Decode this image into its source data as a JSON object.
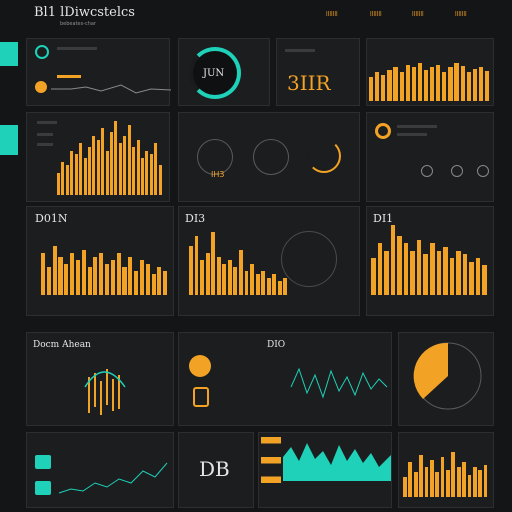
{
  "header": {
    "title": "Bl1 lDiwcstelcs",
    "subtitle": "bebeates-char"
  },
  "colors": {
    "accent_orange": "#f2a224",
    "accent_teal": "#1ed1b8",
    "panel": "#1c1d1f",
    "background": "#141516"
  },
  "top_tabs": [
    {
      "label": "lllllll"
    },
    {
      "label": "lllllll"
    },
    {
      "label": "lllllll"
    },
    {
      "label": "lllllll"
    }
  ],
  "panels": {
    "gauge": {
      "label": "JUN",
      "icon": "radial-gauge-icon"
    },
    "kpi_top": {
      "value": "3IIR"
    },
    "mini_dials": {
      "value": "IH3"
    },
    "row2_left": {
      "label": "D01N"
    },
    "row2_mid": {
      "label": "DI3"
    },
    "row2_right": {
      "label": "DI1"
    },
    "row3_left": {
      "label": "Docm Ahean"
    },
    "row3_mid": {
      "label": "DIO"
    },
    "row4_mid": {
      "value": "DB"
    }
  },
  "chart_data": [
    {
      "type": "bar",
      "values": [
        0.3,
        0.45,
        0.4,
        0.6,
        0.55,
        0.7,
        0.5,
        0.65,
        0.8,
        0.75,
        0.9,
        0.6,
        0.85,
        1.0,
        0.7,
        0.8,
        0.95,
        0.65,
        0.75,
        0.5,
        0.6,
        0.55,
        0.7,
        0.4
      ]
    },
    {
      "type": "bar",
      "values": [
        0.5,
        0.6,
        0.55,
        0.65,
        0.7,
        0.6,
        0.75,
        0.7,
        0.8,
        0.65,
        0.7,
        0.75,
        0.6,
        0.7,
        0.8,
        0.72,
        0.6,
        0.66,
        0.7,
        0.62
      ]
    },
    {
      "type": "bar",
      "values": [
        0.6,
        0.4,
        0.7,
        0.55,
        0.45,
        0.6,
        0.5,
        0.65,
        0.4,
        0.55,
        0.6,
        0.45,
        0.5,
        0.6,
        0.4,
        0.55,
        0.35,
        0.5,
        0.45,
        0.3,
        0.4,
        0.35
      ]
    },
    {
      "type": "bar",
      "values": [
        0.7,
        0.85,
        0.5,
        0.6,
        0.9,
        0.55,
        0.45,
        0.5,
        0.4,
        0.65,
        0.35,
        0.45,
        0.3,
        0.35,
        0.25,
        0.3,
        0.2,
        0.25
      ]
    },
    {
      "type": "bar",
      "values": [
        0.5,
        0.7,
        0.6,
        0.95,
        0.8,
        0.7,
        0.6,
        0.75,
        0.55,
        0.7,
        0.6,
        0.65,
        0.5,
        0.6,
        0.55,
        0.45,
        0.5,
        0.4
      ]
    },
    {
      "type": "bar",
      "values": [
        0.4,
        0.7,
        0.5,
        0.85,
        0.6,
        0.75,
        0.5,
        0.8,
        0.55,
        0.9,
        0.6,
        0.7,
        0.45,
        0.6,
        0.55,
        0.65
      ]
    },
    {
      "type": "pie",
      "values": [
        0.6,
        0.4
      ]
    }
  ]
}
